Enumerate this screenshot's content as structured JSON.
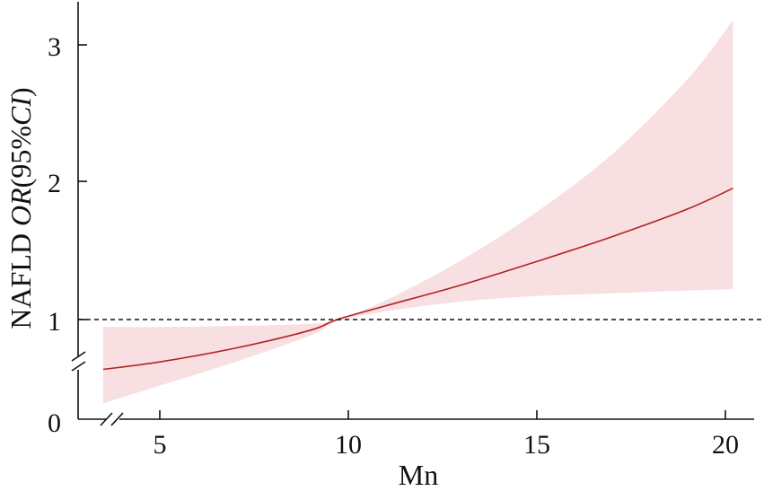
{
  "chart_data": {
    "type": "line",
    "xlabel": "Mn",
    "ylabel": {
      "prefix": "NAFLD ",
      "italic1": "OR",
      "middle": "(95%",
      "italic2": "CI",
      "suffix": ")"
    },
    "xlim": [
      3.5,
      20.9
    ],
    "x_ticks": [
      5,
      10,
      15,
      20
    ],
    "x_tick_labels": [
      "5",
      "10",
      "15",
      "20"
    ],
    "y_tick_labels": [
      "0",
      "1",
      "2",
      "3"
    ],
    "y_axis_break": true,
    "x_axis_break": true,
    "reference_line": {
      "y": 1,
      "style": "dashed"
    },
    "series": [
      {
        "x": [
          3.5,
          5,
          7,
          9,
          9.7,
          11,
          13,
          15,
          17,
          19,
          20.2
        ],
        "y": [
          0.53,
          0.6,
          0.73,
          0.9,
          1.0,
          1.1,
          1.25,
          1.42,
          1.6,
          1.8,
          1.95
        ],
        "ci_lower": [
          0.17,
          0.36,
          0.6,
          0.85,
          0.98,
          1.06,
          1.13,
          1.17,
          1.19,
          1.21,
          1.22
        ],
        "ci_upper": [
          0.93,
          0.93,
          0.94,
          0.96,
          1.0,
          1.14,
          1.43,
          1.78,
          2.2,
          2.75,
          3.18
        ]
      }
    ],
    "colors": {
      "line": "#b22222",
      "band": "#f8dfe1",
      "axis": "#111111"
    }
  }
}
